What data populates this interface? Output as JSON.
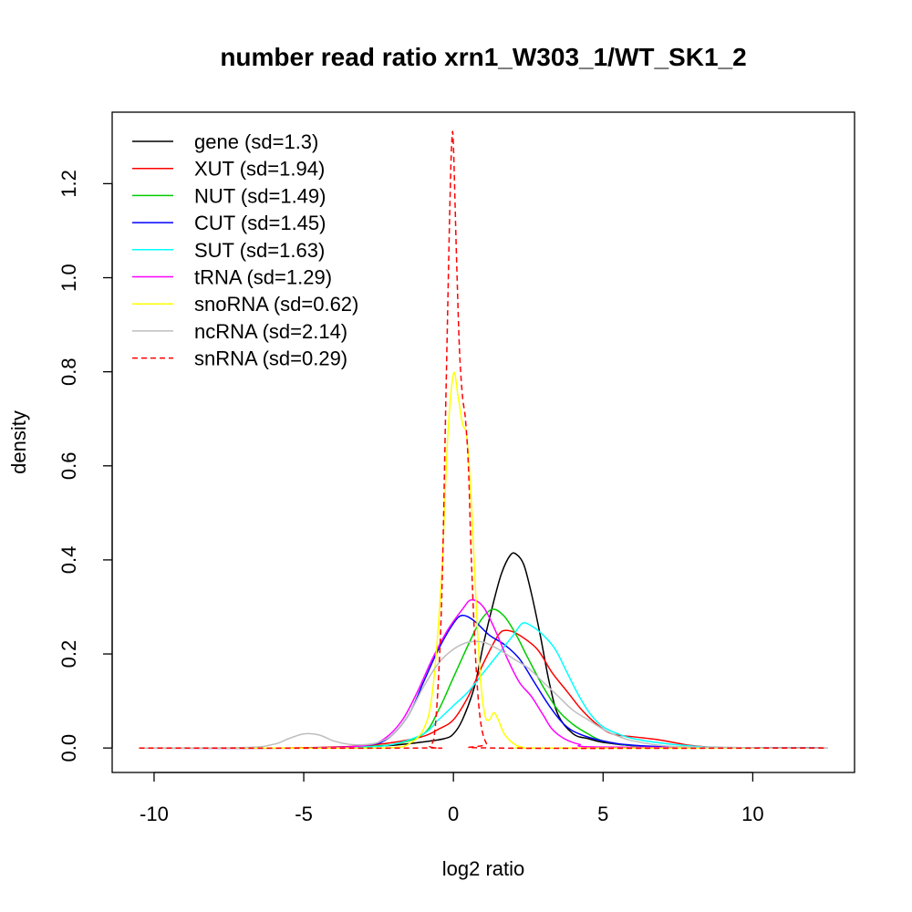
{
  "chart_data": {
    "type": "line",
    "title": "number read ratio xrn1_W303_1/WT_SK1_2",
    "xlabel": "log2 ratio",
    "ylabel": "density",
    "xlim": [
      -11.4,
      13.4
    ],
    "ylim": [
      -0.052,
      1.352
    ],
    "x_ticks": [
      -10,
      -5,
      0,
      5,
      10
    ],
    "y_ticks": [
      0.0,
      0.2,
      0.4,
      0.6,
      0.8,
      1.0,
      1.2
    ],
    "grid": false,
    "legend_position": "top-left",
    "series": [
      {
        "name": "gene (sd=1.3)",
        "color": "#000000",
        "dash": false,
        "points": [
          [
            -10.5,
            0
          ],
          [
            -5,
            0
          ],
          [
            -3,
            0.003
          ],
          [
            -2,
            0.006
          ],
          [
            -1,
            0.013
          ],
          [
            -0.3,
            0.02
          ],
          [
            0,
            0.03
          ],
          [
            0.3,
            0.06
          ],
          [
            0.7,
            0.13
          ],
          [
            1,
            0.22
          ],
          [
            1.3,
            0.3
          ],
          [
            1.6,
            0.37
          ],
          [
            1.9,
            0.41
          ],
          [
            2.1,
            0.412
          ],
          [
            2.35,
            0.39
          ],
          [
            2.6,
            0.33
          ],
          [
            2.9,
            0.24
          ],
          [
            3.2,
            0.14
          ],
          [
            3.5,
            0.07
          ],
          [
            4,
            0.03
          ],
          [
            4.5,
            0.02
          ],
          [
            5,
            0.012
          ],
          [
            6,
            0.005
          ],
          [
            8,
            0.001
          ],
          [
            12.5,
            0
          ]
        ]
      },
      {
        "name": "XUT (sd=1.94)",
        "color": "#ff0000",
        "dash": false,
        "points": [
          [
            -10.5,
            0
          ],
          [
            -6,
            0
          ],
          [
            -4,
            0.002
          ],
          [
            -3,
            0.005
          ],
          [
            -2,
            0.012
          ],
          [
            -1,
            0.025
          ],
          [
            -0.5,
            0.04
          ],
          [
            0,
            0.06
          ],
          [
            0.5,
            0.11
          ],
          [
            1,
            0.18
          ],
          [
            1.5,
            0.24
          ],
          [
            1.8,
            0.25
          ],
          [
            2.2,
            0.24
          ],
          [
            2.8,
            0.21
          ],
          [
            3.3,
            0.16
          ],
          [
            3.8,
            0.12
          ],
          [
            4.3,
            0.08
          ],
          [
            4.8,
            0.05
          ],
          [
            5.3,
            0.03
          ],
          [
            6,
            0.024
          ],
          [
            6.8,
            0.018
          ],
          [
            7.5,
            0.01
          ],
          [
            8,
            0.005
          ],
          [
            9,
            0.001
          ],
          [
            12.5,
            0
          ]
        ]
      },
      {
        "name": "NUT (sd=1.49)",
        "color": "#00cc00",
        "dash": false,
        "points": [
          [
            -10.5,
            0
          ],
          [
            -5,
            0
          ],
          [
            -3.5,
            0.002
          ],
          [
            -2,
            0.008
          ],
          [
            -1,
            0.03
          ],
          [
            -0.5,
            0.08
          ],
          [
            0,
            0.15
          ],
          [
            0.5,
            0.22
          ],
          [
            0.9,
            0.27
          ],
          [
            1.3,
            0.295
          ],
          [
            1.7,
            0.28
          ],
          [
            2.1,
            0.24
          ],
          [
            2.5,
            0.19
          ],
          [
            3,
            0.13
          ],
          [
            3.5,
            0.08
          ],
          [
            4,
            0.05
          ],
          [
            4.5,
            0.03
          ],
          [
            5,
            0.015
          ],
          [
            6,
            0.005
          ],
          [
            8,
            0.001
          ],
          [
            12.5,
            0
          ]
        ]
      },
      {
        "name": "CUT (sd=1.45)",
        "color": "#0000ff",
        "dash": false,
        "points": [
          [
            -10.5,
            0
          ],
          [
            -5,
            0
          ],
          [
            -3,
            0.005
          ],
          [
            -2.2,
            0.02
          ],
          [
            -1.5,
            0.07
          ],
          [
            -1,
            0.14
          ],
          [
            -0.5,
            0.21
          ],
          [
            0,
            0.265
          ],
          [
            0.3,
            0.282
          ],
          [
            0.7,
            0.27
          ],
          [
            1.2,
            0.24
          ],
          [
            1.7,
            0.22
          ],
          [
            2.2,
            0.19
          ],
          [
            2.7,
            0.14
          ],
          [
            3.2,
            0.09
          ],
          [
            3.7,
            0.05
          ],
          [
            4.2,
            0.03
          ],
          [
            5,
            0.015
          ],
          [
            6,
            0.006
          ],
          [
            8,
            0.001
          ],
          [
            12.5,
            0
          ]
        ]
      },
      {
        "name": "SUT (sd=1.63)",
        "color": "#00ffff",
        "dash": false,
        "points": [
          [
            -10.5,
            0
          ],
          [
            -5,
            0
          ],
          [
            -3,
            0.002
          ],
          [
            -2,
            0.008
          ],
          [
            -1,
            0.03
          ],
          [
            -0.5,
            0.06
          ],
          [
            0,
            0.09
          ],
          [
            0.5,
            0.12
          ],
          [
            1,
            0.16
          ],
          [
            1.5,
            0.2
          ],
          [
            2,
            0.24
          ],
          [
            2.3,
            0.265
          ],
          [
            2.6,
            0.26
          ],
          [
            3,
            0.24
          ],
          [
            3.4,
            0.21
          ],
          [
            3.8,
            0.16
          ],
          [
            4.2,
            0.11
          ],
          [
            4.6,
            0.07
          ],
          [
            5,
            0.045
          ],
          [
            5.5,
            0.03
          ],
          [
            6,
            0.02
          ],
          [
            7,
            0.01
          ],
          [
            8,
            0.004
          ],
          [
            9,
            0.001
          ],
          [
            12.5,
            0
          ]
        ]
      },
      {
        "name": "tRNA (sd=1.29)",
        "color": "#ff00ff",
        "dash": false,
        "points": [
          [
            -10.5,
            0
          ],
          [
            -5,
            0
          ],
          [
            -3,
            0.005
          ],
          [
            -2.3,
            0.02
          ],
          [
            -1.7,
            0.06
          ],
          [
            -1.2,
            0.12
          ],
          [
            -0.7,
            0.19
          ],
          [
            -0.2,
            0.25
          ],
          [
            0.3,
            0.295
          ],
          [
            0.6,
            0.315
          ],
          [
            1,
            0.3
          ],
          [
            1.4,
            0.25
          ],
          [
            1.8,
            0.19
          ],
          [
            2.2,
            0.14
          ],
          [
            2.6,
            0.11
          ],
          [
            3,
            0.07
          ],
          [
            3.3,
            0.04
          ],
          [
            3.7,
            0.02
          ],
          [
            4.2,
            0.008
          ],
          [
            5,
            0.002
          ],
          [
            12.5,
            0
          ]
        ]
      },
      {
        "name": "snoRNA (sd=0.62)",
        "color": "#ffff00",
        "dash": false,
        "points": [
          [
            -10.5,
            0
          ],
          [
            -6,
            0
          ],
          [
            -3,
            0
          ],
          [
            -2,
            0.001
          ],
          [
            -1.5,
            0.008
          ],
          [
            -1,
            0.04
          ],
          [
            -0.7,
            0.12
          ],
          [
            -0.4,
            0.36
          ],
          [
            -0.2,
            0.65
          ],
          [
            0,
            0.795
          ],
          [
            0.15,
            0.75
          ],
          [
            0.3,
            0.69
          ],
          [
            0.45,
            0.66
          ],
          [
            0.6,
            0.52
          ],
          [
            0.75,
            0.32
          ],
          [
            0.9,
            0.15
          ],
          [
            1.05,
            0.07
          ],
          [
            1.2,
            0.06
          ],
          [
            1.35,
            0.075
          ],
          [
            1.5,
            0.06
          ],
          [
            1.7,
            0.03
          ],
          [
            2,
            0.01
          ],
          [
            2.3,
            0.002
          ],
          [
            3,
            0
          ],
          [
            12.5,
            0
          ]
        ]
      },
      {
        "name": "ncRNA (sd=2.14)",
        "color": "#bebebe",
        "dash": false,
        "points": [
          [
            -10.5,
            0
          ],
          [
            -7,
            0.001
          ],
          [
            -6,
            0.008
          ],
          [
            -5.5,
            0.02
          ],
          [
            -5,
            0.03
          ],
          [
            -4.5,
            0.028
          ],
          [
            -4,
            0.015
          ],
          [
            -3.5,
            0.008
          ],
          [
            -3,
            0.007
          ],
          [
            -2.5,
            0.012
          ],
          [
            -2,
            0.03
          ],
          [
            -1.5,
            0.07
          ],
          [
            -1,
            0.13
          ],
          [
            -0.5,
            0.18
          ],
          [
            0,
            0.21
          ],
          [
            0.5,
            0.225
          ],
          [
            1,
            0.225
          ],
          [
            1.5,
            0.21
          ],
          [
            2,
            0.19
          ],
          [
            2.5,
            0.17
          ],
          [
            3,
            0.14
          ],
          [
            3.5,
            0.11
          ],
          [
            4,
            0.08
          ],
          [
            4.5,
            0.06
          ],
          [
            5,
            0.04
          ],
          [
            5.5,
            0.025
          ],
          [
            6,
            0.015
          ],
          [
            7,
            0.005
          ],
          [
            8,
            0.002
          ],
          [
            9,
            0.001
          ],
          [
            12.5,
            0
          ]
        ]
      },
      {
        "name": "snRNA (sd=0.29)",
        "color": "#ff0000",
        "dash": true,
        "points": [
          [
            -10.5,
            0
          ],
          [
            -1.2,
            0
          ],
          [
            -0.8,
            0.005
          ],
          [
            -0.6,
            0.05
          ],
          [
            -0.4,
            0.3
          ],
          [
            -0.25,
            0.75
          ],
          [
            -0.12,
            1.15
          ],
          [
            -0.05,
            1.295
          ],
          [
            0,
            1.28
          ],
          [
            0.1,
            1.05
          ],
          [
            0.2,
            0.85
          ],
          [
            0.3,
            0.75
          ],
          [
            0.4,
            0.7
          ],
          [
            0.5,
            0.6
          ],
          [
            0.6,
            0.4
          ],
          [
            0.75,
            0.18
          ],
          [
            0.9,
            0.06
          ],
          [
            1.1,
            0.01
          ],
          [
            1.4,
            0
          ],
          [
            12.5,
            0
          ]
        ]
      }
    ]
  }
}
